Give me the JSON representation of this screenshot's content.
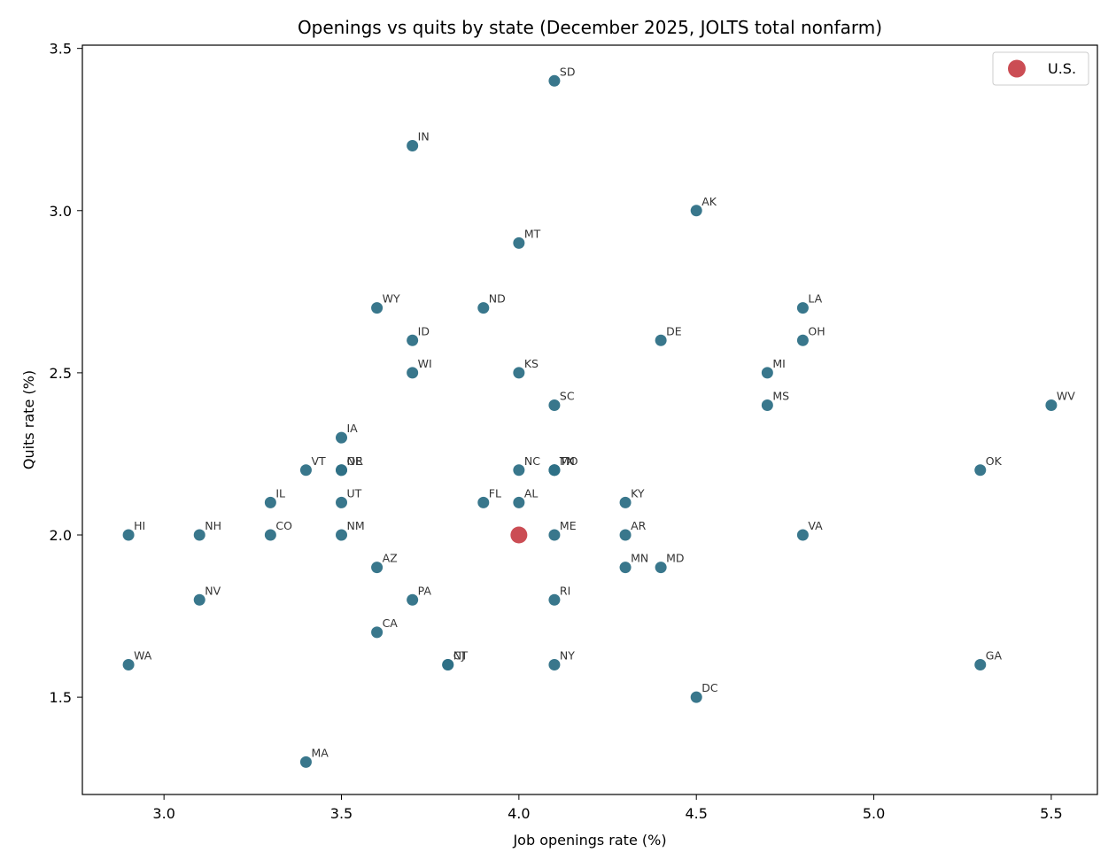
{
  "chart_data": {
    "type": "scatter",
    "title": "Openings vs quits by state (December 2025, JOLTS total nonfarm)",
    "xlabel": "Job openings rate (%)",
    "ylabel": "Quits rate (%)",
    "xlim": [
      2.77,
      5.63
    ],
    "ylim": [
      1.2,
      3.51
    ],
    "xticks": [
      "3.0",
      "3.5",
      "4.0",
      "4.5",
      "5.0",
      "5.5"
    ],
    "yticks": [
      "1.5",
      "2.0",
      "2.5",
      "3.0",
      "3.5"
    ],
    "grid": false,
    "legend_position": "top-right",
    "colors": {
      "states": "#2e7086",
      "us": "#c8434b"
    },
    "series": [
      {
        "points": [
          {
            "label": "SD",
            "x": 4.1,
            "y": 3.4
          },
          {
            "label": "IN",
            "x": 3.7,
            "y": 3.2
          },
          {
            "label": "AK",
            "x": 4.5,
            "y": 3.0
          },
          {
            "label": "MT",
            "x": 4.0,
            "y": 2.9
          },
          {
            "label": "WY",
            "x": 3.6,
            "y": 2.7
          },
          {
            "label": "ND",
            "x": 3.9,
            "y": 2.7
          },
          {
            "label": "LA",
            "x": 4.8,
            "y": 2.7
          },
          {
            "label": "ID",
            "x": 3.7,
            "y": 2.6
          },
          {
            "label": "DE",
            "x": 4.4,
            "y": 2.6
          },
          {
            "label": "OH",
            "x": 4.8,
            "y": 2.6
          },
          {
            "label": "WI",
            "x": 3.7,
            "y": 2.5
          },
          {
            "label": "KS",
            "x": 4.0,
            "y": 2.5
          },
          {
            "label": "MI",
            "x": 4.7,
            "y": 2.5
          },
          {
            "label": "SC",
            "x": 4.1,
            "y": 2.4
          },
          {
            "label": "MS",
            "x": 4.7,
            "y": 2.4
          },
          {
            "label": "WV",
            "x": 5.5,
            "y": 2.4
          },
          {
            "label": "IA",
            "x": 3.5,
            "y": 2.3
          },
          {
            "label": "VT",
            "x": 3.4,
            "y": 2.2
          },
          {
            "label": "OR",
            "x": 3.5,
            "y": 2.2
          },
          {
            "label": "NE",
            "x": 3.5,
            "y": 2.2
          },
          {
            "label": "NC",
            "x": 4.0,
            "y": 2.2
          },
          {
            "label": "TN",
            "x": 4.1,
            "y": 2.2
          },
          {
            "label": "MO",
            "x": 4.1,
            "y": 2.2
          },
          {
            "label": "TX",
            "x": 4.1,
            "y": 2.2
          },
          {
            "label": "OK",
            "x": 5.3,
            "y": 2.2
          },
          {
            "label": "IL",
            "x": 3.3,
            "y": 2.1
          },
          {
            "label": "UT",
            "x": 3.5,
            "y": 2.1
          },
          {
            "label": "FL",
            "x": 3.9,
            "y": 2.1
          },
          {
            "label": "AL",
            "x": 4.0,
            "y": 2.1
          },
          {
            "label": "KY",
            "x": 4.3,
            "y": 2.1
          },
          {
            "label": "HI",
            "x": 2.9,
            "y": 2.0
          },
          {
            "label": "NH",
            "x": 3.1,
            "y": 2.0
          },
          {
            "label": "CO",
            "x": 3.3,
            "y": 2.0
          },
          {
            "label": "NM",
            "x": 3.5,
            "y": 2.0
          },
          {
            "label": "ME",
            "x": 4.1,
            "y": 2.0
          },
          {
            "label": "AR",
            "x": 4.3,
            "y": 2.0
          },
          {
            "label": "VA",
            "x": 4.8,
            "y": 2.0
          },
          {
            "label": "AZ",
            "x": 3.6,
            "y": 1.9
          },
          {
            "label": "MN",
            "x": 4.3,
            "y": 1.9
          },
          {
            "label": "MD",
            "x": 4.4,
            "y": 1.9
          },
          {
            "label": "NV",
            "x": 3.1,
            "y": 1.8
          },
          {
            "label": "PA",
            "x": 3.7,
            "y": 1.8
          },
          {
            "label": "RI",
            "x": 4.1,
            "y": 1.8
          },
          {
            "label": "CA",
            "x": 3.6,
            "y": 1.7
          },
          {
            "label": "WA",
            "x": 2.9,
            "y": 1.6
          },
          {
            "label": "CT",
            "x": 3.8,
            "y": 1.6
          },
          {
            "label": "NJ",
            "x": 3.8,
            "y": 1.6
          },
          {
            "label": "NY",
            "x": 4.1,
            "y": 1.6
          },
          {
            "label": "GA",
            "x": 5.3,
            "y": 1.6
          },
          {
            "label": "DC",
            "x": 4.5,
            "y": 1.5
          },
          {
            "label": "MA",
            "x": 3.4,
            "y": 1.3
          }
        ]
      },
      {
        "name": "U.S.",
        "points": [
          {
            "x": 4.0,
            "y": 2.0
          }
        ]
      }
    ]
  }
}
